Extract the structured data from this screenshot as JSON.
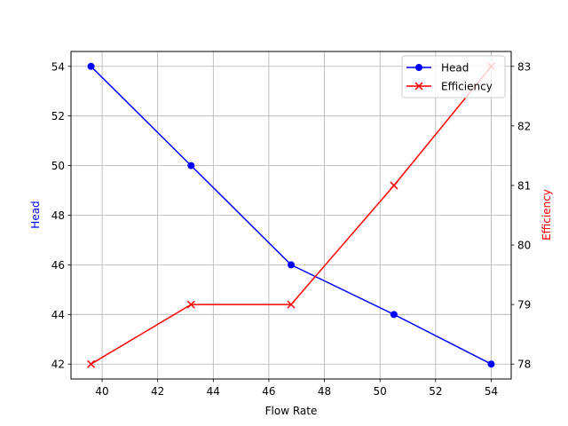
{
  "chart_data": {
    "type": "line",
    "title": "",
    "xlabel": "Flow Rate",
    "ylabel": "Head",
    "ylabel_right": "Efficiency",
    "x": [
      39.6,
      43.2,
      46.8,
      50.5,
      54.0
    ],
    "series": [
      {
        "name": "Head",
        "axis": "left",
        "color": "#0000ff",
        "marker": "circle",
        "values": [
          54,
          50,
          46,
          44,
          42
        ]
      },
      {
        "name": "Efficiency",
        "axis": "right",
        "color": "#ff0000",
        "marker": "x",
        "values": [
          78,
          79,
          79,
          81,
          83
        ]
      }
    ],
    "xlim": [
      38.88,
      54.72
    ],
    "ylim": [
      41.4,
      54.6
    ],
    "ylim_right": [
      77.75,
      83.25
    ],
    "x_ticks": [
      "40",
      "42",
      "44",
      "46",
      "48",
      "50",
      "52",
      "54"
    ],
    "y_ticks": [
      "42",
      "44",
      "46",
      "48",
      "50",
      "52",
      "54"
    ],
    "y_ticks_right": [
      "78",
      "79",
      "80",
      "81",
      "82",
      "83"
    ],
    "grid": true,
    "legend_position": "upper right",
    "legend": [
      "Head",
      "Efficiency"
    ]
  }
}
